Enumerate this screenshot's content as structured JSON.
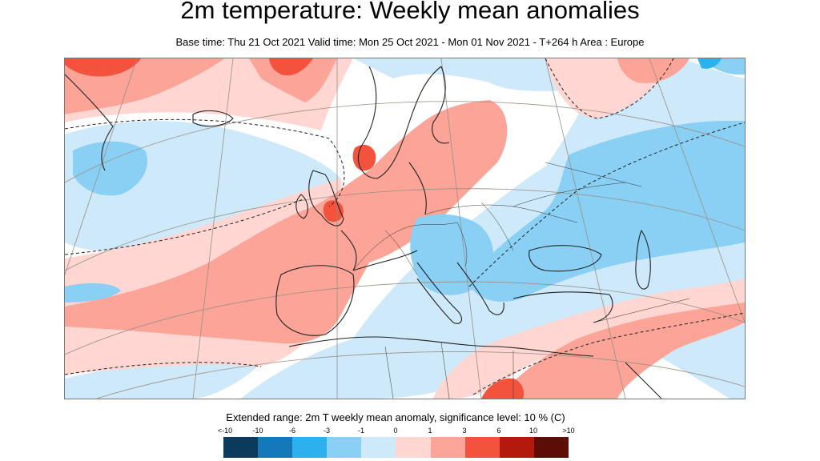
{
  "title": "2m temperature: Weekly mean anomalies",
  "subtitle": "Base time: Thu 21 Oct 2021 Valid time: Mon 25 Oct 2021 - Mon 01 Nov 2021 - T+264 h Area : Europe",
  "legend": {
    "title": "Extended range: 2m T weekly mean anomaly, significance level: 10 % (C)",
    "labels": [
      "<-10",
      "-10",
      "-6",
      "-3",
      "-1",
      "0",
      "1",
      "3",
      "6",
      "10",
      ">10"
    ],
    "colors": [
      "#0b3a5c",
      "#1479b8",
      "#2db0ee",
      "#8ad0f5",
      "#cde9fa",
      "#ffd6d2",
      "#fba497",
      "#f3533c",
      "#b41a0c",
      "#5c0d05"
    ]
  },
  "map": {
    "region": "Europe",
    "base_color": "#ffffff",
    "coast_color": "#222222",
    "grid_color": "#9a8f84",
    "sig_contour": "dashed"
  }
}
